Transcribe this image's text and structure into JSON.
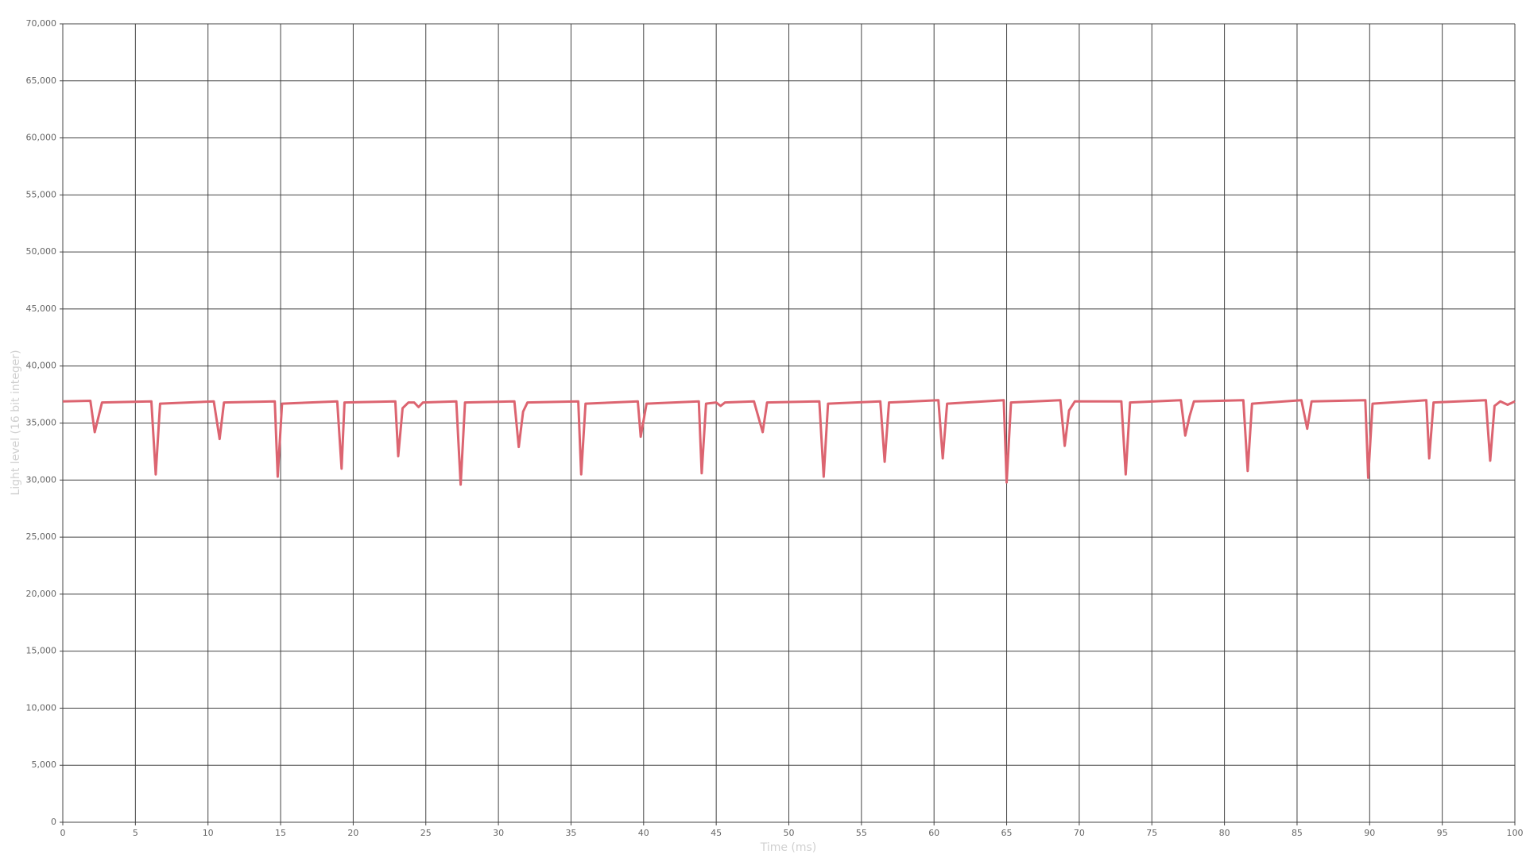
{
  "chart_data": {
    "type": "line",
    "x_label": "Time (ms)",
    "y_label": "Light level (16 bit integer)",
    "xlim": [
      0,
      100
    ],
    "ylim": [
      0,
      70000
    ],
    "xticks": [
      0,
      5,
      10,
      15,
      20,
      25,
      30,
      35,
      40,
      45,
      50,
      55,
      60,
      65,
      70,
      75,
      80,
      85,
      90,
      95,
      100
    ],
    "yticks": [
      0,
      {
        "value": 5000,
        "label": "5,000"
      },
      {
        "value": 10000,
        "label": "10,000"
      },
      {
        "value": 15000,
        "label": "15,000"
      },
      {
        "value": 20000,
        "label": "20,000"
      },
      {
        "value": 25000,
        "label": "25,000"
      },
      {
        "value": 30000,
        "label": "30,000"
      },
      {
        "value": 35000,
        "label": "35,000"
      },
      {
        "value": 40000,
        "label": "40,000"
      },
      {
        "value": 45000,
        "label": "45,000"
      },
      {
        "value": 50000,
        "label": "50,000"
      },
      {
        "value": 55000,
        "label": "55,000"
      },
      {
        "value": 60000,
        "label": "60,000"
      },
      {
        "value": 65000,
        "label": "65,000"
      },
      {
        "value": 70000,
        "label": "70,000"
      }
    ],
    "grid": true,
    "x": [
      0,
      1.9,
      2.2,
      2.7,
      6.1,
      6.4,
      6.7,
      10.4,
      10.8,
      11.1,
      14.6,
      14.8,
      15.1,
      18.9,
      19.2,
      19.4,
      22.9,
      23.1,
      23.4,
      23.8,
      24.2,
      24.5,
      24.8,
      27.1,
      27.4,
      27.7,
      31.1,
      31.4,
      31.7,
      32.0,
      35.5,
      35.7,
      36.0,
      39.6,
      39.8,
      40.2,
      43.8,
      44.0,
      44.3,
      45.0,
      45.3,
      45.6,
      47.6,
      48.2,
      48.5,
      52.1,
      52.4,
      52.7,
      56.3,
      56.6,
      56.9,
      60.3,
      60.6,
      60.9,
      64.8,
      65.0,
      65.3,
      68.7,
      69.0,
      69.3,
      69.7,
      72.9,
      73.2,
      73.5,
      77.0,
      77.3,
      77.6,
      77.9,
      81.3,
      81.6,
      81.9,
      85.3,
      85.7,
      86.0,
      89.7,
      89.9,
      90.2,
      93.9,
      94.1,
      94.4,
      98.0,
      98.3,
      98.6,
      99.0,
      99.5,
      100
    ],
    "series": [
      {
        "color": "#dc6470",
        "values": [
          36900,
          36950,
          34200,
          36800,
          36900,
          30500,
          36700,
          36900,
          33600,
          36800,
          36900,
          30300,
          36700,
          36900,
          31000,
          36800,
          36900,
          32100,
          36300,
          36800,
          36800,
          36400,
          36800,
          36900,
          29600,
          36800,
          36900,
          32900,
          36000,
          36800,
          36900,
          30500,
          36700,
          36900,
          33800,
          36700,
          36900,
          30600,
          36700,
          36800,
          36500,
          36800,
          36900,
          34200,
          36800,
          36900,
          30300,
          36700,
          36900,
          31600,
          36800,
          37000,
          31900,
          36700,
          37000,
          29800,
          36800,
          37000,
          33000,
          36100,
          36900,
          36900,
          30500,
          36800,
          37000,
          33900,
          35600,
          36900,
          37000,
          30800,
          36700,
          37000,
          34500,
          36900,
          37000,
          30200,
          36700,
          37000,
          31900,
          36800,
          37000,
          31700,
          36500,
          36900,
          36600,
          36900
        ]
      }
    ]
  }
}
